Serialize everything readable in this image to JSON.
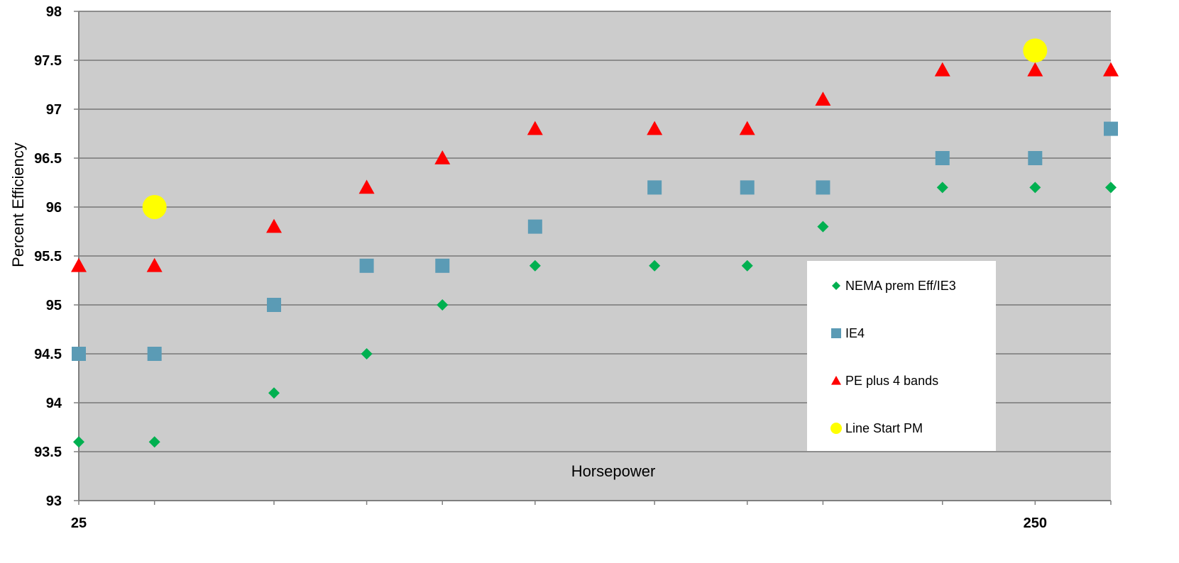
{
  "chart_data": {
    "type": "scatter",
    "title": "",
    "xlabel": "Horsepower",
    "ylabel": "Percent Efficiency",
    "x_scale": "log",
    "xlim": [
      25,
      300
    ],
    "ylim": [
      93,
      98
    ],
    "y_ticks": [
      "93",
      "93.5",
      "94",
      "94.5",
      "95",
      "95.5",
      "96",
      "96.5",
      "97",
      "97.5",
      "98"
    ],
    "x_tick_labels": [
      {
        "value": 25,
        "label": "25"
      },
      {
        "value": 250,
        "label": "250"
      }
    ],
    "x_minor_ticks": [
      25,
      30,
      40,
      50,
      60,
      75,
      100,
      125,
      150,
      200,
      250,
      300
    ],
    "grid": "horizontal",
    "legend_position": "lower-right",
    "plot_background": "#cccccc",
    "series": [
      {
        "name": "NEMA prem Eff/IE3",
        "marker": "diamond",
        "color": "#00b050",
        "points": [
          [
            25,
            93.6
          ],
          [
            30,
            93.6
          ],
          [
            40,
            94.1
          ],
          [
            50,
            94.5
          ],
          [
            60,
            95.0
          ],
          [
            75,
            95.4
          ],
          [
            100,
            95.4
          ],
          [
            125,
            95.4
          ],
          [
            150,
            95.8
          ],
          [
            200,
            96.2
          ],
          [
            250,
            96.2
          ],
          [
            300,
            96.2
          ]
        ]
      },
      {
        "name": "IE4",
        "marker": "square",
        "color": "#5b9bb5",
        "points": [
          [
            25,
            94.5
          ],
          [
            30,
            94.5
          ],
          [
            40,
            95.0
          ],
          [
            50,
            95.4
          ],
          [
            60,
            95.4
          ],
          [
            75,
            95.8
          ],
          [
            100,
            96.2
          ],
          [
            125,
            96.2
          ],
          [
            150,
            96.2
          ],
          [
            200,
            96.5
          ],
          [
            250,
            96.5
          ],
          [
            300,
            96.8
          ]
        ]
      },
      {
        "name": "PE plus 4 bands",
        "marker": "triangle",
        "color": "#ff0000",
        "points": [
          [
            25,
            95.4
          ],
          [
            30,
            95.4
          ],
          [
            40,
            95.8
          ],
          [
            50,
            96.2
          ],
          [
            60,
            96.5
          ],
          [
            75,
            96.8
          ],
          [
            100,
            96.8
          ],
          [
            125,
            96.8
          ],
          [
            150,
            97.1
          ],
          [
            200,
            97.4
          ],
          [
            250,
            97.4
          ],
          [
            300,
            97.4
          ]
        ]
      },
      {
        "name": "Line Start PM",
        "marker": "circle",
        "color": "#ffff00",
        "points": [
          [
            30,
            96.0
          ],
          [
            250,
            97.6
          ]
        ]
      }
    ]
  }
}
